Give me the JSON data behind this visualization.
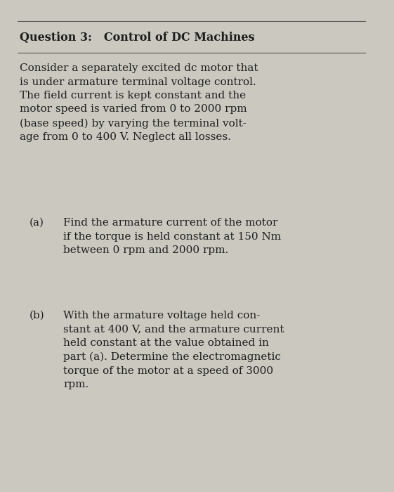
{
  "background_color": "#cbc8c0",
  "title_line1": "Question 3:   Control of DC Machines",
  "paragraph": "Consider a separately excited dc motor that\nis under armature terminal voltage control.\nThe field current is kept constant and the\nmotor speed is varied from 0 to 2000 rpm\n(base speed) by varying the terminal volt-\nage from 0 to 400 V. Neglect all losses.",
  "part_a_label": "(a)",
  "part_a_text": "Find the armature current of the motor\nif the torque is held constant at 150 Nm\nbetween 0 rpm and 2000 rpm.",
  "part_b_label": "(b)",
  "part_b_text": "With the armature voltage held con-\nstant at 400 V, and the armature current\nheld constant at the value obtained in\npart (a). Determine the electromagnetic\ntorque of the motor at a speed of 3000\nrpm.",
  "title_fontsize": 11.5,
  "body_fontsize": 11.0,
  "text_color": "#1e1e1e",
  "title_font_weight": "bold",
  "line_color": "#555555"
}
